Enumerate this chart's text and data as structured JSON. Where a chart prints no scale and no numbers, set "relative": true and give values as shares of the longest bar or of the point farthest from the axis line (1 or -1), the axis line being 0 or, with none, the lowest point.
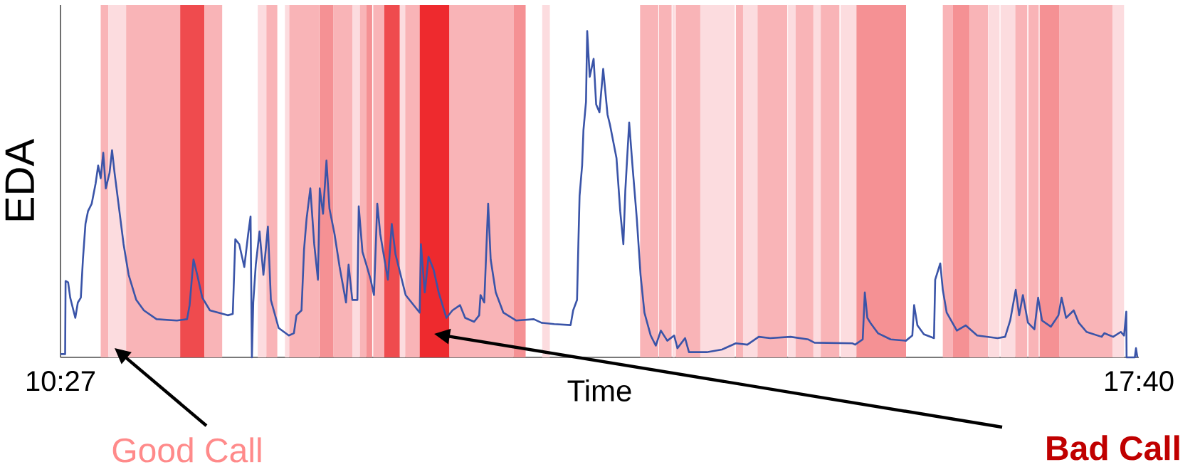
{
  "chart_data": {
    "type": "line",
    "xlabel": "Time",
    "ylabel": "EDA",
    "relative": true,
    "xlim": [
      10.45,
      17.6667
    ],
    "xticks": [
      {
        "value": 10.45,
        "label": "10:27"
      },
      {
        "value": 17.6667,
        "label": "17:40"
      }
    ],
    "x": [
      10.45,
      10.481,
      10.484,
      10.501,
      10.515,
      10.549,
      10.566,
      10.586,
      10.6,
      10.617,
      10.634,
      10.659,
      10.685,
      10.702,
      10.719,
      10.736,
      10.753,
      10.778,
      10.795,
      10.812,
      10.838,
      10.872,
      10.906,
      10.957,
      11.008,
      11.093,
      11.229,
      11.297,
      11.314,
      11.34,
      11.365,
      11.399,
      11.45,
      11.569,
      11.603,
      11.62,
      11.646,
      11.68,
      11.706,
      11.722,
      11.731,
      11.74,
      11.757,
      11.782,
      11.808,
      11.838,
      11.858,
      11.91,
      11.978,
      12.012,
      12.029,
      12.063,
      12.08,
      12.097,
      12.122,
      12.148,
      12.173,
      12.185,
      12.207,
      12.23,
      12.25,
      12.284,
      12.318,
      12.361,
      12.378,
      12.403,
      12.437,
      12.446,
      12.471,
      12.497,
      12.526,
      12.548,
      12.57,
      12.59,
      12.641,
      12.667,
      12.692,
      12.76,
      12.854,
      12.862,
      12.888,
      12.913,
      12.947,
      12.981,
      13.033,
      13.073,
      13.124,
      13.158,
      13.218,
      13.252,
      13.261,
      13.286,
      13.312,
      13.329,
      13.363,
      13.414,
      13.499,
      13.618,
      13.669,
      13.754,
      13.864,
      13.881,
      13.907,
      13.915,
      13.924,
      13.941,
      13.95,
      13.967,
      13.975,
      13.992,
      14.018,
      14.035,
      14.057,
      14.082,
      14.111,
      14.128,
      14.171,
      14.196,
      14.217,
      14.23,
      14.256,
      14.278,
      14.307,
      14.332,
      14.358,
      14.4,
      14.434,
      14.468,
      14.511,
      14.557,
      14.579,
      14.63,
      14.656,
      14.775,
      14.877,
      14.97,
      15.047,
      15.123,
      15.2,
      15.336,
      15.455,
      15.496,
      15.751,
      15.768,
      15.819,
      15.833,
      15.85,
      15.87,
      15.921,
      16.006,
      16.108,
      16.151,
      16.163,
      16.185,
      16.228,
      16.296,
      16.304,
      16.338,
      16.355,
      16.381,
      16.449,
      16.508,
      16.585,
      16.721,
      16.772,
      16.806,
      16.843,
      16.866,
      16.891,
      16.925,
      16.968,
      16.993,
      17.019,
      17.078,
      17.129,
      17.15,
      17.18,
      17.231,
      17.265,
      17.317,
      17.418,
      17.436,
      17.495,
      17.546,
      17.568,
      17.583,
      17.585,
      17.64,
      17.648,
      17.657
    ],
    "series": [
      {
        "color": "#3a54a8",
        "values": [
          0.01,
          0.01,
          0.234,
          0.23,
          0.183,
          0.121,
          0.168,
          0.183,
          0.3,
          0.409,
          0.448,
          0.471,
          0.533,
          0.588,
          0.549,
          0.627,
          0.518,
          0.565,
          0.635,
          0.565,
          0.471,
          0.347,
          0.253,
          0.176,
          0.144,
          0.117,
          0.113,
          0.117,
          0.16,
          0.3,
          0.253,
          0.183,
          0.144,
          0.129,
          0.133,
          0.362,
          0.347,
          0.277,
          0.378,
          0.432,
          0.0,
          0.168,
          0.284,
          0.386,
          0.253,
          0.401,
          0.176,
          0.09,
          0.067,
          0.074,
          0.129,
          0.144,
          0.331,
          0.425,
          0.518,
          0.347,
          0.238,
          0.518,
          0.44,
          0.603,
          0.456,
          0.378,
          0.277,
          0.168,
          0.284,
          0.176,
          0.176,
          0.463,
          0.323,
          0.284,
          0.238,
          0.191,
          0.471,
          0.378,
          0.238,
          0.409,
          0.316,
          0.191,
          0.137,
          0.347,
          0.199,
          0.308,
          0.269,
          0.199,
          0.121,
          0.144,
          0.16,
          0.121,
          0.109,
          0.129,
          0.191,
          0.168,
          0.471,
          0.3,
          0.199,
          0.137,
          0.113,
          0.117,
          0.106,
          0.102,
          0.099,
          0.144,
          0.176,
          0.331,
          0.495,
          0.588,
          0.697,
          0.783,
          1.0,
          0.86,
          0.915,
          0.775,
          0.751,
          0.884,
          0.744,
          0.712,
          0.611,
          0.448,
          0.347,
          0.51,
          0.72,
          0.588,
          0.425,
          0.253,
          0.137,
          0.067,
          0.036,
          0.082,
          0.051,
          0.067,
          0.028,
          0.059,
          0.016,
          0.016,
          0.024,
          0.043,
          0.039,
          0.063,
          0.059,
          0.063,
          0.055,
          0.045,
          0.043,
          0.039,
          0.055,
          0.199,
          0.121,
          0.106,
          0.074,
          0.055,
          0.051,
          0.067,
          0.16,
          0.098,
          0.071,
          0.059,
          0.238,
          0.288,
          0.207,
          0.137,
          0.082,
          0.098,
          0.067,
          0.059,
          0.063,
          0.113,
          0.207,
          0.129,
          0.191,
          0.106,
          0.086,
          0.183,
          0.113,
          0.094,
          0.129,
          0.183,
          0.121,
          0.144,
          0.106,
          0.078,
          0.063,
          0.074,
          0.063,
          0.078,
          0.067,
          0.14,
          0.0,
          0.0,
          0.028,
          0.0
        ]
      }
    ],
    "bands": [
      {
        "axis": "x",
        "from": 10.719,
        "to": 10.77,
        "color": "#f9b4b7"
      },
      {
        "axis": "x",
        "from": 10.77,
        "to": 10.889,
        "color": "#fcdcdf"
      },
      {
        "axis": "x",
        "from": 10.889,
        "to": 11.251,
        "color": "#f9b4b7"
      },
      {
        "axis": "x",
        "from": 11.251,
        "to": 11.413,
        "color": "#ef4b4e"
      },
      {
        "axis": "x",
        "from": 11.413,
        "to": 11.532,
        "color": "#f9b4b7"
      },
      {
        "axis": "x",
        "from": 11.77,
        "to": 11.828,
        "color": "#fcdcdf"
      },
      {
        "axis": "x",
        "from": 11.828,
        "to": 11.901,
        "color": "#f9b4b7"
      },
      {
        "axis": "x",
        "from": 11.952,
        "to": 11.981,
        "color": "#fcdcdf"
      },
      {
        "axis": "x",
        "from": 11.981,
        "to": 12.179,
        "color": "#f9b4b7"
      },
      {
        "axis": "x",
        "from": 12.182,
        "to": 12.277,
        "color": "#f59194"
      },
      {
        "axis": "x",
        "from": 12.277,
        "to": 12.403,
        "color": "#f9b4b7"
      },
      {
        "axis": "x",
        "from": 12.403,
        "to": 12.454,
        "color": "#fcdcdf"
      },
      {
        "axis": "x",
        "from": 12.454,
        "to": 12.496,
        "color": "#f9b4b7"
      },
      {
        "axis": "x",
        "from": 12.496,
        "to": 12.536,
        "color": "#f59194"
      },
      {
        "axis": "x",
        "from": 12.543,
        "to": 12.617,
        "color": "#f9b4b7"
      },
      {
        "axis": "x",
        "from": 12.617,
        "to": 12.721,
        "color": "#ef4b4e"
      },
      {
        "axis": "x",
        "from": 12.721,
        "to": 12.757,
        "color": "#fcdcdf"
      },
      {
        "axis": "x",
        "from": 12.757,
        "to": 12.854,
        "color": "#f9b4b7"
      },
      {
        "axis": "x",
        "from": 12.854,
        "to": 13.053,
        "color": "#ee2a2e"
      },
      {
        "axis": "x",
        "from": 13.053,
        "to": 13.482,
        "color": "#f9b4b7"
      },
      {
        "axis": "x",
        "from": 13.482,
        "to": 13.563,
        "color": "#f59194"
      },
      {
        "axis": "x",
        "from": 13.674,
        "to": 13.725,
        "color": "#fcdcdf"
      },
      {
        "axis": "x",
        "from": 14.329,
        "to": 14.451,
        "color": "#f9b4b7"
      },
      {
        "axis": "x",
        "from": 14.456,
        "to": 14.54,
        "color": "#f9b4b7"
      },
      {
        "axis": "x",
        "from": 14.545,
        "to": 14.562,
        "color": "#fcdcdf"
      },
      {
        "axis": "x",
        "from": 14.567,
        "to": 14.732,
        "color": "#f9b4b7"
      },
      {
        "axis": "x",
        "from": 14.732,
        "to": 14.962,
        "color": "#fcdcdf"
      },
      {
        "axis": "x",
        "from": 14.97,
        "to": 15.018,
        "color": "#f9b4b7"
      },
      {
        "axis": "x",
        "from": 15.018,
        "to": 15.115,
        "color": "#fcdcdf"
      },
      {
        "axis": "x",
        "from": 15.115,
        "to": 15.314,
        "color": "#f9b4b7"
      },
      {
        "axis": "x",
        "from": 15.319,
        "to": 15.37,
        "color": "#fcdcdf"
      },
      {
        "axis": "x",
        "from": 15.37,
        "to": 15.489,
        "color": "#f9b4b7"
      },
      {
        "axis": "x",
        "from": 15.489,
        "to": 15.538,
        "color": "#fcdcdf"
      },
      {
        "axis": "x",
        "from": 15.538,
        "to": 15.663,
        "color": "#f9b4b7"
      },
      {
        "axis": "x",
        "from": 15.671,
        "to": 15.777,
        "color": "#fcdcdf"
      },
      {
        "axis": "x",
        "from": 15.777,
        "to": 16.109,
        "color": "#f59194"
      },
      {
        "axis": "x",
        "from": 16.355,
        "to": 16.423,
        "color": "#f9b4b7"
      },
      {
        "axis": "x",
        "from": 16.423,
        "to": 16.534,
        "color": "#f59194"
      },
      {
        "axis": "x",
        "from": 16.534,
        "to": 16.658,
        "color": "#f9b4b7"
      },
      {
        "axis": "x",
        "from": 16.661,
        "to": 16.735,
        "color": "#fcdcdf"
      },
      {
        "axis": "x",
        "from": 16.741,
        "to": 16.84,
        "color": "#fcdcdf"
      },
      {
        "axis": "x",
        "from": 16.84,
        "to": 16.92,
        "color": "#f9b4b7"
      },
      {
        "axis": "x",
        "from": 16.928,
        "to": 16.997,
        "color": "#f9b4b7"
      },
      {
        "axis": "x",
        "from": 17.003,
        "to": 17.136,
        "color": "#f59194"
      },
      {
        "axis": "x",
        "from": 17.136,
        "to": 17.491,
        "color": "#f9b4b7"
      },
      {
        "axis": "x",
        "from": 17.491,
        "to": 17.568,
        "color": "#fcdcdf"
      }
    ],
    "annotations": [
      "Good Call",
      "Bad Call"
    ]
  }
}
